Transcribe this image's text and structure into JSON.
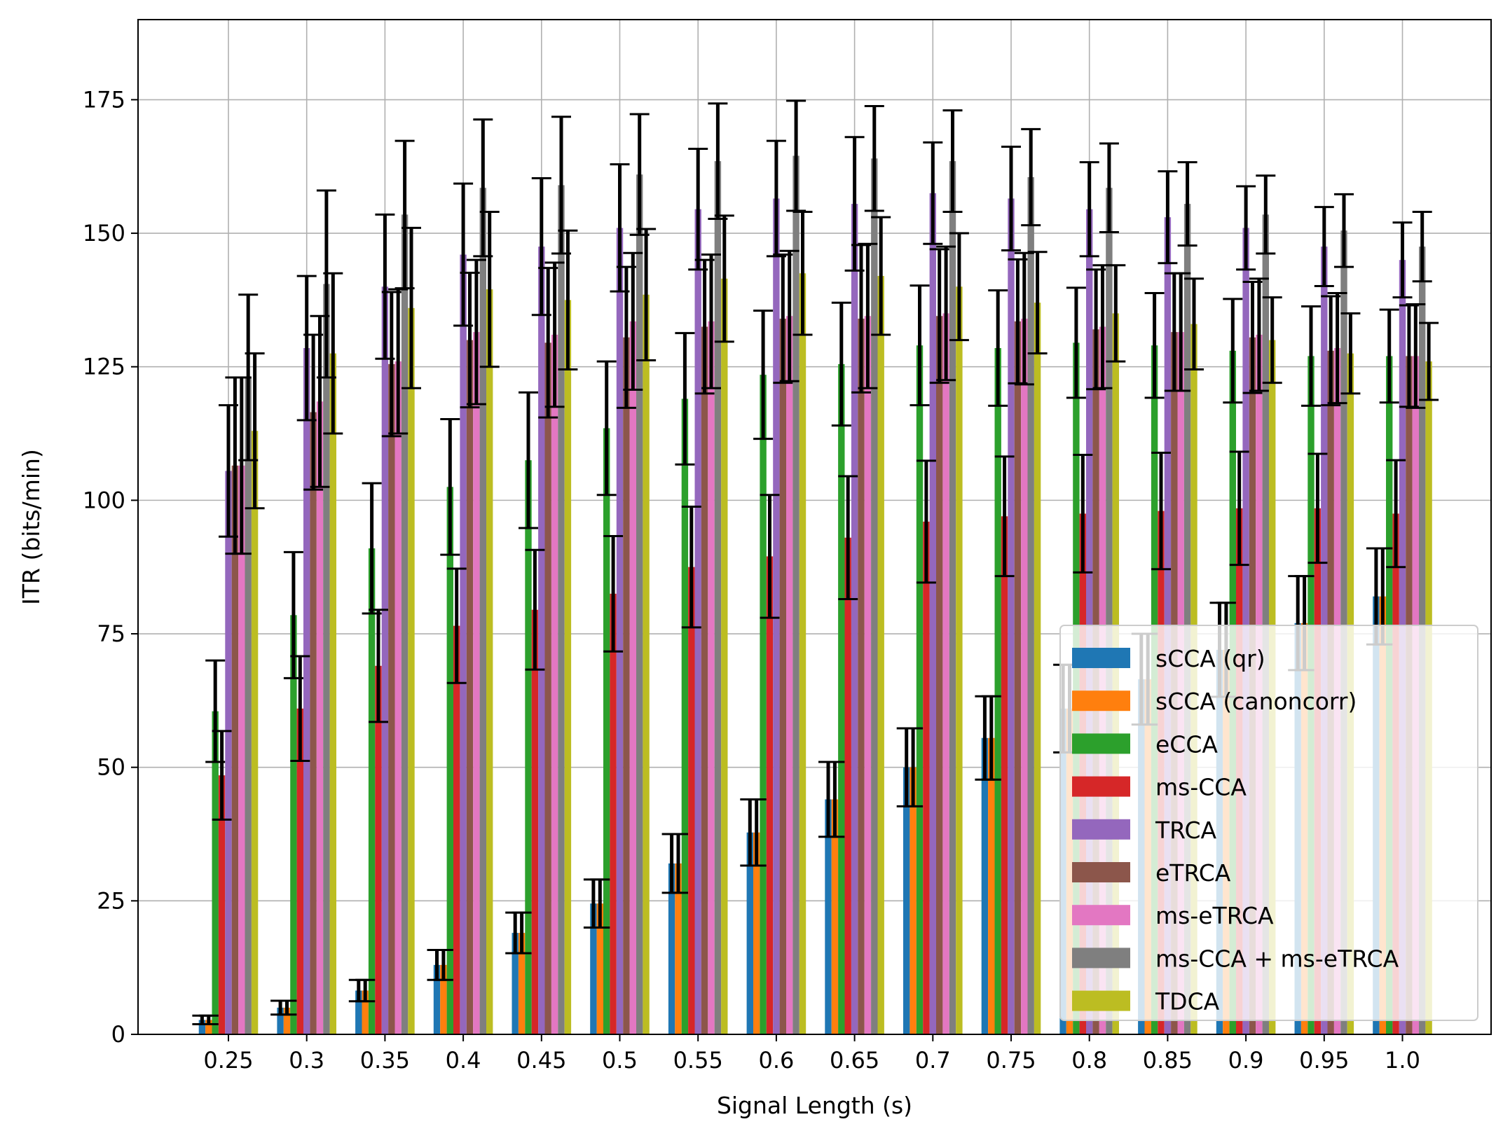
{
  "chart_data": {
    "type": "bar",
    "xlabel": "Signal Length (s)",
    "ylabel": "ITR (bits/min)",
    "ylim": [
      0,
      190
    ],
    "yticks": [
      0,
      25,
      50,
      75,
      100,
      125,
      150,
      175
    ],
    "grid": true,
    "legend_position": "lower-right",
    "categories": [
      "0.25",
      "0.3",
      "0.35",
      "0.4",
      "0.45",
      "0.5",
      "0.55",
      "0.6",
      "0.65",
      "0.7",
      "0.75",
      "0.8",
      "0.85",
      "0.9",
      "0.95",
      "1.0"
    ],
    "series": [
      {
        "name": "sCCA (qr)",
        "color": "#1f77b4",
        "values": [
          2.7,
          5.0,
          8.2,
          13.0,
          19.0,
          24.5,
          32.0,
          37.8,
          44.0,
          50.0,
          55.5,
          61.0,
          66.5,
          72.0,
          77.0,
          82.0
        ],
        "errors": [
          0.8,
          1.3,
          2.0,
          2.8,
          3.8,
          4.5,
          5.5,
          6.2,
          7.0,
          7.3,
          7.8,
          8.2,
          8.5,
          8.8,
          8.8,
          9.0
        ]
      },
      {
        "name": "sCCA (canoncorr)",
        "color": "#ff7f0e",
        "values": [
          2.7,
          5.0,
          8.2,
          13.0,
          19.0,
          24.5,
          32.0,
          37.8,
          44.0,
          50.0,
          55.5,
          61.0,
          66.5,
          72.0,
          77.0,
          82.0
        ],
        "errors": [
          0.8,
          1.3,
          2.0,
          2.8,
          3.8,
          4.5,
          5.5,
          6.2,
          7.0,
          7.3,
          7.8,
          8.2,
          8.5,
          8.8,
          8.8,
          9.0
        ]
      },
      {
        "name": "eCCA",
        "color": "#2ca02c",
        "values": [
          60.5,
          78.5,
          91.0,
          102.5,
          107.5,
          113.5,
          119.0,
          123.5,
          125.5,
          129.0,
          128.5,
          129.5,
          129.0,
          128.0,
          127.0,
          127.0
        ],
        "errors": [
          9.5,
          11.8,
          12.2,
          12.7,
          12.7,
          12.5,
          12.3,
          12.0,
          11.5,
          11.2,
          10.8,
          10.3,
          9.8,
          9.7,
          9.3,
          8.7
        ]
      },
      {
        "name": "ms-CCA",
        "color": "#d62728",
        "values": [
          48.5,
          61.0,
          69.0,
          76.5,
          79.5,
          82.5,
          87.5,
          89.5,
          93.0,
          96.0,
          97.0,
          97.5,
          98.0,
          98.5,
          98.5,
          97.5
        ],
        "errors": [
          8.3,
          9.8,
          10.5,
          10.7,
          11.2,
          10.8,
          11.3,
          11.5,
          11.5,
          11.4,
          11.2,
          11.0,
          10.9,
          10.6,
          10.2,
          10.0
        ]
      },
      {
        "name": "TRCA",
        "color": "#9467bd",
        "values": [
          105.5,
          128.5,
          140.0,
          146.0,
          147.5,
          151.0,
          154.5,
          156.5,
          155.5,
          157.5,
          156.5,
          154.5,
          153.0,
          151.0,
          147.5,
          145.0
        ],
        "errors": [
          12.3,
          13.5,
          13.5,
          13.3,
          12.8,
          11.9,
          11.3,
          10.8,
          12.5,
          9.5,
          9.7,
          8.8,
          8.6,
          7.8,
          7.4,
          7.0
        ]
      },
      {
        "name": "eTRCA",
        "color": "#8c564b",
        "values": [
          106.5,
          116.5,
          125.5,
          130.0,
          129.5,
          130.5,
          132.5,
          134.0,
          134.0,
          134.5,
          133.5,
          132.0,
          131.5,
          130.5,
          128.0,
          127.0
        ],
        "errors": [
          16.5,
          14.5,
          13.5,
          12.6,
          14.0,
          13.2,
          12.5,
          12.0,
          13.8,
          12.5,
          11.6,
          11.2,
          11.0,
          10.4,
          10.2,
          9.5
        ]
      },
      {
        "name": "ms-eTRCA",
        "color": "#e377c2",
        "values": [
          106.5,
          118.5,
          126.0,
          131.5,
          131.0,
          133.5,
          133.5,
          134.5,
          134.5,
          135.0,
          134.0,
          132.5,
          131.5,
          131.0,
          128.5,
          127.0
        ],
        "errors": [
          16.5,
          16.0,
          13.5,
          13.5,
          13.5,
          12.8,
          12.5,
          12.2,
          13.5,
          12.5,
          12.3,
          11.5,
          11.0,
          10.5,
          10.3,
          9.7
        ]
      },
      {
        "name": "ms-CCA + ms-eTRCA",
        "color": "#7f7f7f",
        "values": [
          123.0,
          140.5,
          153.5,
          158.5,
          159.0,
          161.0,
          163.5,
          164.5,
          164.0,
          163.5,
          160.5,
          158.5,
          155.5,
          153.5,
          150.5,
          147.5
        ],
        "errors": [
          15.5,
          17.5,
          13.8,
          12.8,
          12.8,
          11.3,
          10.8,
          10.3,
          9.8,
          9.5,
          9.0,
          8.3,
          7.8,
          7.3,
          6.8,
          6.5
        ]
      },
      {
        "name": "TDCA",
        "color": "#bcbd22",
        "values": [
          113.0,
          127.5,
          136.0,
          139.5,
          137.5,
          138.5,
          141.5,
          142.5,
          142.0,
          140.0,
          137.0,
          135.0,
          133.0,
          130.0,
          127.5,
          126.0
        ],
        "errors": [
          14.5,
          15.0,
          15.0,
          14.5,
          13.0,
          12.3,
          11.8,
          11.5,
          11.0,
          10.0,
          9.5,
          9.0,
          8.5,
          8.0,
          7.5,
          7.2
        ]
      }
    ]
  }
}
